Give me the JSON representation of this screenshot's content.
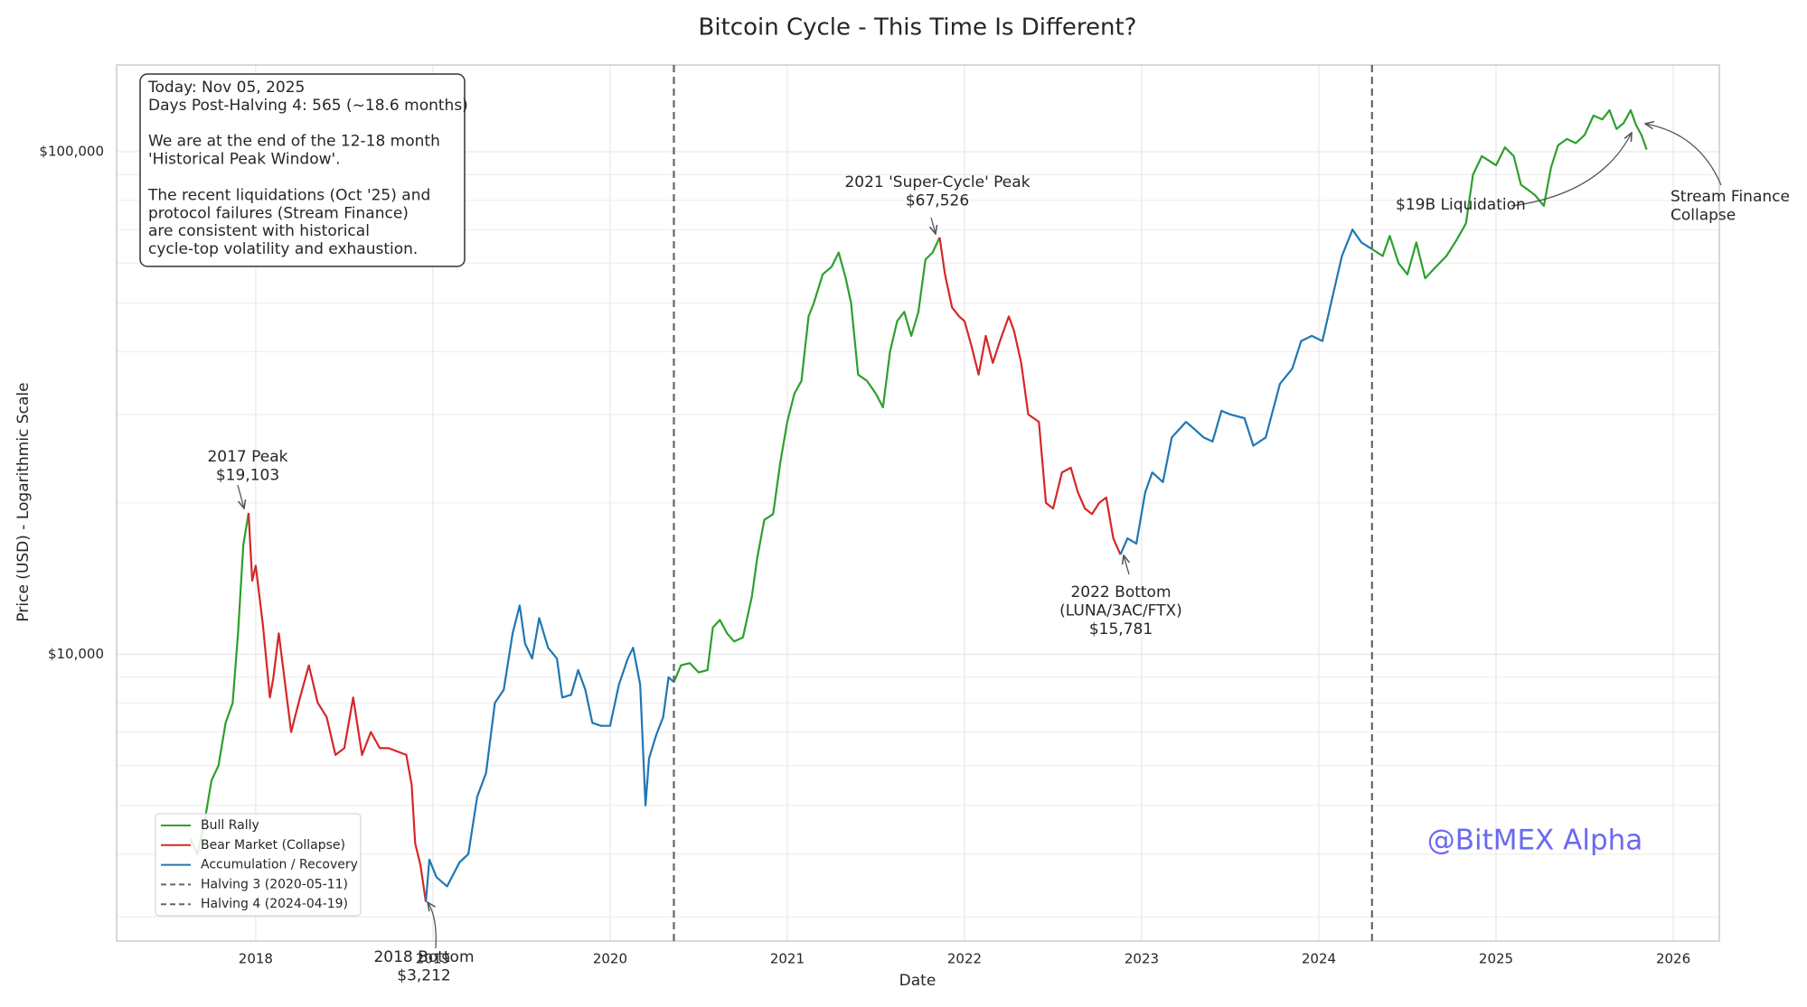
{
  "chart_data": {
    "type": "line",
    "title": "Bitcoin Cycle - This Time Is Different?",
    "x_label": "Date",
    "y_label": "Price (USD) - Logarithmic Scale",
    "log_y": true,
    "grid": true,
    "legend": "lower left",
    "xlim": [
      2017.215,
      2026.26
    ],
    "xticks": [
      2018,
      2019,
      2020,
      2021,
      2022,
      2023,
      2024,
      2025,
      2026
    ],
    "ylim": [
      2685,
      148800
    ],
    "yticks": [
      {
        "value": 10000,
        "label": "$10,000"
      },
      {
        "value": 100000,
        "label": "$100,000"
      }
    ],
    "yminor_ticks": [
      3000,
      4000,
      5000,
      6000,
      7000,
      8000,
      9000,
      20000,
      30000,
      40000,
      50000,
      60000,
      70000,
      80000,
      90000
    ],
    "series": [
      {
        "name": "Bull Rally",
        "color": "#2ca02c",
        "x": [
          2017.63,
          2017.67,
          2017.71,
          2017.75,
          2017.79,
          2017.83,
          2017.87,
          2017.9,
          2017.93,
          2017.96,
          null,
          2020.36,
          2020.4,
          2020.45,
          2020.5,
          2020.55,
          2020.58,
          2020.62,
          2020.66,
          2020.7,
          2020.75,
          2020.8,
          2020.83,
          2020.87,
          2020.92,
          2020.96,
          2021.0,
          2021.04,
          2021.08,
          2021.12,
          2021.15,
          2021.2,
          2021.25,
          2021.29,
          2021.33,
          2021.36,
          2021.4,
          2021.45,
          2021.5,
          2021.54,
          2021.58,
          2021.62,
          2021.66,
          2021.7,
          2021.74,
          2021.78,
          2021.82,
          2021.86,
          null,
          2024.3,
          2024.36,
          2024.4,
          2024.45,
          2024.5,
          2024.55,
          2024.6,
          2024.66,
          2024.72,
          2024.78,
          2024.83,
          2024.87,
          2024.92,
          2024.96,
          2025.0,
          2025.05,
          2025.1,
          2025.14,
          2025.18,
          2025.22,
          2025.27,
          2025.31,
          2025.35,
          2025.4,
          2025.45,
          2025.5,
          2025.55,
          2025.6,
          2025.64,
          2025.68,
          2025.72,
          2025.76,
          2025.79,
          2025.82,
          2025.85
        ],
        "values": [
          4300,
          4000,
          4600,
          5600,
          6000,
          7300,
          8000,
          11000,
          16500,
          19103,
          null,
          8800,
          9500,
          9600,
          9200,
          9300,
          11300,
          11700,
          11000,
          10600,
          10800,
          13000,
          15500,
          18500,
          19000,
          24000,
          29000,
          33000,
          35000,
          47000,
          50000,
          57000,
          59000,
          63000,
          56000,
          50000,
          36000,
          35000,
          33000,
          31000,
          40000,
          46000,
          48000,
          43000,
          48000,
          61000,
          63000,
          67526,
          null,
          64000,
          62000,
          68000,
          60000,
          57000,
          66000,
          56000,
          59000,
          62000,
          67000,
          72000,
          90000,
          98000,
          96000,
          94000,
          102000,
          98000,
          86000,
          84000,
          82000,
          78000,
          93000,
          103000,
          106000,
          104000,
          108000,
          118000,
          116000,
          121000,
          111000,
          114000,
          121000,
          113000,
          108000,
          101000
        ]
      },
      {
        "name": "Bear Market (Collapse)",
        "color": "#d62728",
        "x": [
          2017.96,
          2017.98,
          2018.0,
          2018.04,
          2018.08,
          2018.1,
          2018.13,
          2018.17,
          2018.2,
          2018.25,
          2018.3,
          2018.35,
          2018.4,
          2018.45,
          2018.5,
          2018.55,
          2018.6,
          2018.65,
          2018.7,
          2018.75,
          2018.8,
          2018.85,
          2018.88,
          2018.9,
          2018.93,
          2018.96,
          null,
          2021.86,
          2021.89,
          2021.93,
          2021.97,
          2022.0,
          2022.04,
          2022.08,
          2022.12,
          2022.16,
          2022.2,
          2022.25,
          2022.28,
          2022.32,
          2022.36,
          2022.42,
          2022.46,
          2022.5,
          2022.55,
          2022.6,
          2022.64,
          2022.68,
          2022.72,
          2022.76,
          2022.8,
          2022.84,
          2022.88
        ],
        "values": [
          19103,
          14000,
          15000,
          11500,
          8200,
          9000,
          11000,
          8500,
          7000,
          8200,
          9500,
          8000,
          7500,
          6300,
          6500,
          8200,
          6300,
          7000,
          6500,
          6500,
          6400,
          6300,
          5500,
          4200,
          3800,
          3212,
          null,
          67526,
          57000,
          49000,
          47000,
          46000,
          41000,
          36000,
          43000,
          38000,
          42000,
          47000,
          44000,
          38000,
          30000,
          29000,
          20000,
          19500,
          23000,
          23500,
          21000,
          19500,
          19000,
          20000,
          20500,
          17000,
          15781
        ]
      },
      {
        "name": "Accumulation / Recovery",
        "color": "#1f77b4",
        "x": [
          2018.96,
          2018.98,
          2019.02,
          2019.08,
          2019.15,
          2019.2,
          2019.25,
          2019.3,
          2019.35,
          2019.4,
          2019.45,
          2019.49,
          2019.52,
          2019.56,
          2019.6,
          2019.65,
          2019.7,
          2019.73,
          2019.78,
          2019.82,
          2019.86,
          2019.9,
          2019.95,
          2020.0,
          2020.05,
          2020.1,
          2020.13,
          2020.17,
          2020.2,
          2020.22,
          2020.26,
          2020.3,
          2020.33,
          2020.36,
          null,
          2022.88,
          2022.92,
          2022.97,
          2023.02,
          2023.06,
          2023.12,
          2023.17,
          2023.25,
          2023.3,
          2023.35,
          2023.4,
          2023.45,
          2023.5,
          2023.58,
          2023.63,
          2023.7,
          2023.78,
          2023.85,
          2023.9,
          2023.96,
          2024.02,
          2024.08,
          2024.13,
          2024.19,
          2024.24,
          2024.3
        ],
        "values": [
          3212,
          3900,
          3600,
          3450,
          3850,
          4000,
          5200,
          5800,
          8000,
          8500,
          11000,
          12500,
          10500,
          9800,
          11800,
          10300,
          9800,
          8200,
          8300,
          9300,
          8500,
          7300,
          7200,
          7200,
          8700,
          9800,
          10300,
          8700,
          5000,
          6200,
          6900,
          7500,
          9000,
          8800,
          null,
          15781,
          17000,
          16600,
          21000,
          23000,
          22000,
          27000,
          29000,
          28000,
          27000,
          26500,
          30500,
          30000,
          29500,
          26000,
          27000,
          34500,
          37000,
          42000,
          43000,
          42000,
          52000,
          62000,
          70000,
          66000,
          64000
        ]
      }
    ],
    "vlines": [
      {
        "x": 2020.36,
        "label": "Halving 3 (2020-05-11)",
        "color": "#666666"
      },
      {
        "x": 2024.3,
        "label": "Halving 4 (2024-04-19)",
        "color": "#666666"
      }
    ],
    "annotations": [
      {
        "lines": [
          "2017 Peak",
          "$19,103"
        ]
      },
      {
        "lines": [
          "2018 Bottom",
          "$3,212"
        ]
      },
      {
        "lines": [
          "2021 'Super-Cycle' Peak",
          "$67,526"
        ]
      },
      {
        "lines": [
          "2022 Bottom",
          "(LUNA/3AC/FTX)",
          "$15,781"
        ]
      },
      {
        "lines": [
          "$19B Liquidation"
        ]
      },
      {
        "lines": [
          "Stream Finance",
          "Collapse"
        ]
      }
    ],
    "info_box": [
      [
        "Today: Nov 05, 2025",
        "Days Post-Halving 4: 565 (~18.6 months)"
      ],
      [
        "We are at the end of the 12-18 month",
        "'Historical Peak Window'."
      ],
      [
        "The recent liquidations (Oct '25) and",
        "protocol failures (Stream Finance)",
        "are consistent with historical",
        "cycle-top volatility and exhaustion."
      ]
    ],
    "watermark": "@BitMEX Alpha"
  }
}
